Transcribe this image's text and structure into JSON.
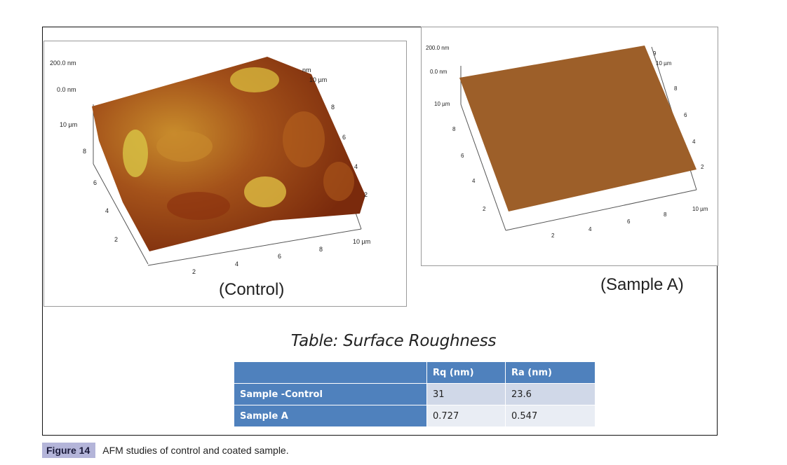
{
  "figure": {
    "label": "Figure 14",
    "caption": "AFM studies of control and coated sample."
  },
  "panels": [
    {
      "id": "control",
      "caption": "(Control)",
      "z_top": "200.0 nm",
      "z_zero": "0.0 nm",
      "z_top_partial": "nm",
      "left_axis_end": "10 µm",
      "left_ticks": [
        "8",
        "6",
        "4",
        "2"
      ],
      "front_ticks": [
        "2",
        "4",
        "6",
        "8"
      ],
      "front_end": "10 µm",
      "right_ticks": [
        "8",
        "6",
        "4",
        "2"
      ],
      "right_end": "10 µm",
      "surface_colors": [
        "#8a2e0e",
        "#a8511a",
        "#c58325",
        "#d9b63f",
        "#e6d766"
      ]
    },
    {
      "id": "sample-a",
      "caption": "(Sample A)",
      "z_top": "200.0 nm",
      "z_zero": "0.0 nm",
      "z_top_partial": "9",
      "left_axis_end": "10 µm",
      "left_ticks": [
        "8",
        "6",
        "4",
        "2"
      ],
      "front_ticks": [
        "2",
        "4",
        "6",
        "8"
      ],
      "front_end": "10 µm",
      "right_ticks": [
        "8",
        "6",
        "4",
        "2"
      ],
      "right_end": "10 µm",
      "surface_colors": [
        "#9a5a26",
        "#a66a2e"
      ]
    }
  ],
  "table": {
    "title": "Table: Surface Roughness",
    "headers": [
      "",
      "Rq (nm)",
      "Ra (nm)"
    ],
    "rows": [
      {
        "label": "Sample -Control",
        "rq": "31",
        "ra": "23.6"
      },
      {
        "label": "Sample A",
        "rq": "0.727",
        "ra": "0.547"
      }
    ]
  }
}
